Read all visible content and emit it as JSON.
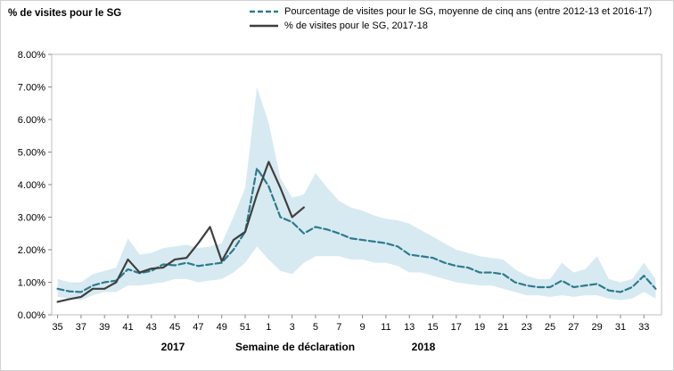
{
  "title": "% de visites pour le SG",
  "legend": [
    {
      "label": "Pourcentage de visites pour le SG, moyenne de cinq ans (entre 2012-13 et 2016-17)",
      "style": "dashed",
      "color": "#2E7B8C"
    },
    {
      "label": "% de visites pour le SG, 2017-18",
      "style": "solid",
      "color": "#3F3F3F"
    }
  ],
  "x_axis": {
    "title": "Semaine de déclaration",
    "year_labels": [
      "2017",
      "2018"
    ]
  },
  "chart_data": {
    "type": "line",
    "title": "% de visites pour le SG",
    "xlabel": "Semaine de déclaration",
    "ylabel": "% de visites pour le SG",
    "ylim": [
      0,
      8
    ],
    "grid": false,
    "legend_position": "top",
    "y_tick_labels": [
      "0.00%",
      "1.00%",
      "2.00%",
      "3.00%",
      "4.00%",
      "5.00%",
      "6.00%",
      "7.00%",
      "8.00%"
    ],
    "x_tick_label_interval": 2,
    "weeks": [
      35,
      36,
      37,
      38,
      39,
      40,
      41,
      42,
      43,
      44,
      45,
      46,
      47,
      48,
      49,
      50,
      51,
      52,
      1,
      2,
      3,
      4,
      5,
      6,
      7,
      8,
      9,
      10,
      11,
      12,
      13,
      14,
      15,
      16,
      17,
      18,
      19,
      20,
      21,
      22,
      23,
      24,
      25,
      26,
      27,
      28,
      29,
      30,
      31,
      32,
      33,
      34
    ],
    "series": [
      {
        "name": "Pourcentage de visites pour le SG, moyenne de cinq ans (entre 2012-13 et 2016-17)",
        "values": [
          0.8,
          0.72,
          0.7,
          0.9,
          1.0,
          1.05,
          1.4,
          1.28,
          1.35,
          1.55,
          1.52,
          1.6,
          1.5,
          1.55,
          1.6,
          2.0,
          2.55,
          4.5,
          3.95,
          3.0,
          2.85,
          2.5,
          2.7,
          2.62,
          2.5,
          2.35,
          2.3,
          2.25,
          2.2,
          2.1,
          1.85,
          1.8,
          1.75,
          1.6,
          1.5,
          1.45,
          1.3,
          1.3,
          1.25,
          1.0,
          0.9,
          0.85,
          0.85,
          1.05,
          0.85,
          0.9,
          0.95,
          0.75,
          0.7,
          0.85,
          1.2,
          0.8
        ]
      },
      {
        "name": "% de visites pour le SG, 2017-18",
        "values": [
          0.4,
          0.48,
          0.55,
          0.8,
          0.8,
          1.0,
          1.7,
          1.3,
          1.42,
          1.45,
          1.7,
          1.75,
          2.2,
          2.7,
          1.65,
          2.3,
          2.55,
          3.7,
          4.7,
          3.9,
          3.0,
          3.3
        ]
      }
    ],
    "band": {
      "color": "#D7EAF2",
      "upper": [
        1.1,
        1.0,
        1.0,
        1.25,
        1.35,
        1.45,
        2.35,
        1.85,
        1.9,
        2.05,
        2.1,
        2.15,
        2.05,
        2.1,
        2.2,
        3.0,
        3.9,
        7.0,
        5.9,
        4.2,
        3.6,
        3.7,
        4.35,
        3.9,
        3.5,
        3.3,
        3.2,
        3.05,
        2.95,
        2.9,
        2.8,
        2.6,
        2.4,
        2.2,
        2.0,
        1.9,
        1.8,
        1.75,
        1.7,
        1.4,
        1.2,
        1.1,
        1.1,
        1.6,
        1.3,
        1.4,
        1.8,
        1.1,
        1.0,
        1.1,
        1.6,
        1.1
      ],
      "lower": [
        0.55,
        0.5,
        0.45,
        0.6,
        0.7,
        0.7,
        0.9,
        0.9,
        0.95,
        1.0,
        1.1,
        1.1,
        1.0,
        1.05,
        1.1,
        1.3,
        1.6,
        2.1,
        1.7,
        1.35,
        1.25,
        1.6,
        1.8,
        1.8,
        1.8,
        1.7,
        1.7,
        1.6,
        1.6,
        1.5,
        1.3,
        1.3,
        1.2,
        1.1,
        1.0,
        0.95,
        0.9,
        0.9,
        0.8,
        0.7,
        0.6,
        0.6,
        0.55,
        0.6,
        0.55,
        0.6,
        0.6,
        0.5,
        0.45,
        0.5,
        0.7,
        0.5
      ]
    }
  }
}
